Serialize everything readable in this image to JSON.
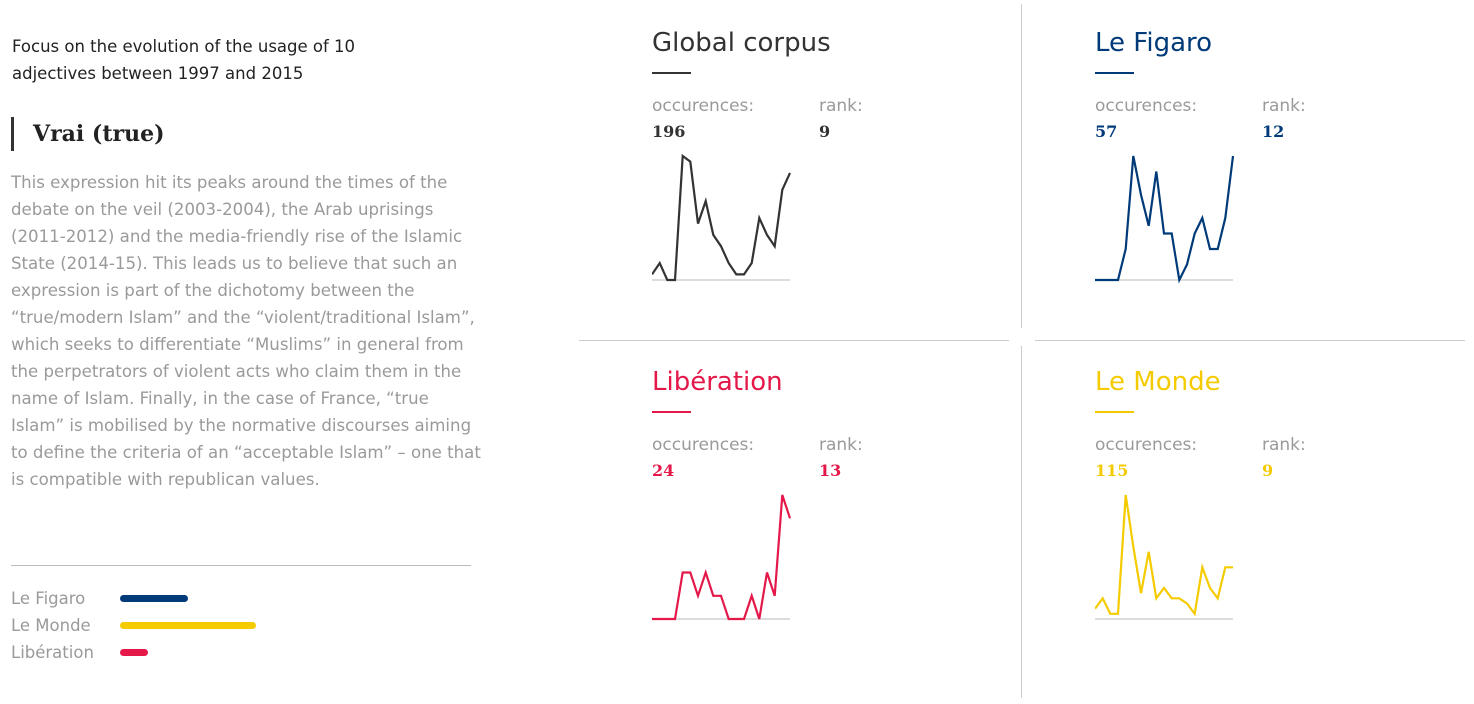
{
  "intro": "Focus on the evolution of the usage of 10 adjectives between 1997 and 2015",
  "word": "Vrai (true)",
  "description": "This expression hit its peaks around the times of the debate on the veil (2003-2004), the Arab uprisings (2011-2012) and the media-friendly rise of the Islamic State (2014-15). This leads us to believe that such an expression is part of the dichotomy between the “true/modern Islam” and the “violent/traditional Islam”, which seeks to differentiate “Muslims” in general from the perpetrators of violent acts who claim them in the name of Islam. Finally, in the case of France, “true Islam” is mobilised by the normative discourses aiming to define the criteria of an “acceptable Islam” – one that is compatible with republican values.",
  "legend": [
    {
      "label": "Le Figaro",
      "color": "#003a78",
      "share": 0.296
    },
    {
      "label": "Le Monde",
      "color": "#f5cb00",
      "share": 0.59
    },
    {
      "label": "Libération",
      "color": "#e5184a",
      "share": 0.123
    }
  ],
  "labels": {
    "occurrences": "occurences:",
    "rank": "rank:"
  },
  "chart_data": [
    {
      "type": "line",
      "title": "Global corpus",
      "color": "#333333",
      "occurrences": "196",
      "rank": "9",
      "values": [
        1,
        3,
        0,
        0,
        22,
        21,
        10,
        14,
        8,
        6,
        3,
        1,
        1,
        3,
        11,
        8,
        6,
        16,
        19
      ]
    },
    {
      "type": "line",
      "title": "Le Figaro",
      "color": "#003a78",
      "occurrences": "57",
      "rank": "12",
      "values": [
        0,
        0,
        0,
        0,
        4,
        16,
        11,
        7,
        14,
        6,
        6,
        0,
        2,
        6,
        8,
        4,
        4,
        8,
        16
      ]
    },
    {
      "type": "line",
      "title": "Libération",
      "color": "#e5184a",
      "occurrences": "24",
      "rank": "13",
      "values": [
        0,
        0,
        0,
        0,
        6,
        6,
        3,
        6,
        3,
        3,
        0,
        0,
        0,
        3,
        0,
        6,
        3,
        16,
        13
      ]
    },
    {
      "type": "line",
      "title": "Le Monde",
      "color": "#f5cb00",
      "occurrences": "115",
      "rank": "9",
      "values": [
        2,
        4,
        1,
        1,
        24,
        14,
        5,
        13,
        4,
        6,
        4,
        4,
        3,
        1,
        10,
        6,
        4,
        10,
        10
      ]
    }
  ]
}
